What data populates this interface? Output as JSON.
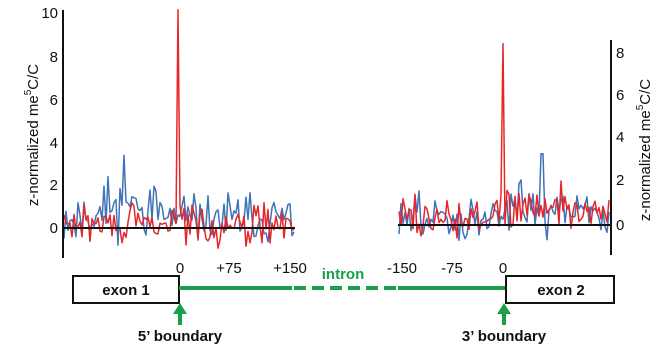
{
  "chart_data": [
    {
      "type": "line",
      "panel": "5' boundary",
      "title": "",
      "ylabel": "z-normalized me5C/C",
      "ylabel_main": "z-normalized me",
      "ylabel_sup": "5",
      "ylabel_tail": "C/C",
      "xlabel": "",
      "xlim": [
        -50,
        50
      ],
      "ylim": [
        -1.2,
        10
      ],
      "yticks": [
        0,
        2,
        4,
        6,
        8,
        10
      ],
      "yticklabels": [
        "0",
        "2",
        "4",
        "6",
        "8",
        "10"
      ],
      "xticks": [
        0,
        75,
        150
      ],
      "xticklabels": [
        "0",
        "+75",
        "+150"
      ],
      "series": [
        {
          "color": "#e8262a",
          "values_description": "noisy around 0",
          "peak": {
            "x": 0,
            "y": 10.2
          }
        },
        {
          "color": "#3f73b8",
          "values_description": "noisy around 0.5",
          "peak": {
            "x": -28,
            "y": 3.4
          }
        }
      ]
    },
    {
      "type": "line",
      "panel": "3' boundary",
      "title": "",
      "ylabel": "z-normalized me5C/C",
      "ylabel_main": "z-normalized me",
      "ylabel_sup": "5",
      "ylabel_tail": "C/C",
      "xlabel": "",
      "ylim": [
        -1.3,
        8.5
      ],
      "yticks": [
        0,
        2,
        4,
        6,
        8
      ],
      "yticklabels": [
        "0",
        "2",
        "4",
        "6",
        "8"
      ],
      "xticks": [
        -150,
        -75,
        0
      ],
      "xticklabels": [
        "-150",
        "-75",
        "0"
      ],
      "series": [
        {
          "color": "#e8262a",
          "values_description": "noisy around 0.3",
          "peak": {
            "x": 0,
            "y": 8.4
          }
        },
        {
          "color": "#3f73b8",
          "values_description": "noisy around 0.3",
          "peak": {
            "x": 20,
            "y": 3.3
          }
        }
      ]
    }
  ],
  "gene_model": {
    "exon1_label": "exon 1",
    "exon2_label": "exon 2",
    "intron_label": "intron",
    "boundary5_label": "5’ boundary",
    "boundary3_label": "3’ boundary",
    "intron_color": "#1aa04a",
    "arrow_color": "#1aa04a"
  }
}
